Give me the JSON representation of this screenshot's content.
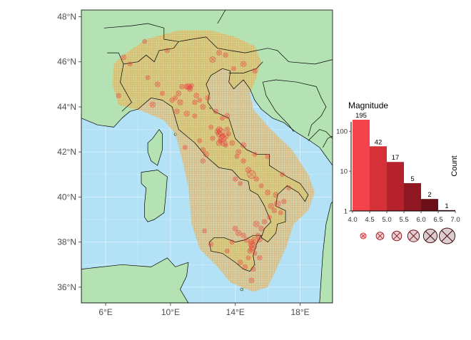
{
  "chart_data": [
    {
      "type": "map",
      "x_ticks": [
        "6°E",
        "10°E",
        "14°E",
        "18°E"
      ],
      "y_ticks": [
        "36°N",
        "38°N",
        "40°N",
        "42°N",
        "44°N",
        "46°N",
        "48°N"
      ],
      "xlim": [
        4.5,
        20.0
      ],
      "ylim": [
        35.3,
        48.3
      ],
      "colors": {
        "sea": "#b3e2f7",
        "land": "#b5e2b3",
        "hazard_zone": "#e8c268",
        "hatch": "#f08a3c",
        "event_marker": "#e8413f",
        "border": "#000000"
      },
      "events": [
        [
          11.1,
          44.9,
          4.5
        ],
        [
          11.2,
          44.85,
          4.2
        ],
        [
          11.0,
          44.9,
          4.3
        ],
        [
          11.3,
          44.95,
          4.1
        ],
        [
          11.2,
          44.8,
          4.4
        ],
        [
          10.7,
          44.9,
          4.2
        ],
        [
          10.5,
          44.6,
          4.3
        ],
        [
          10.3,
          44.4,
          4.1
        ],
        [
          10.6,
          44.2,
          4.4
        ],
        [
          11.5,
          44.2,
          4.2
        ],
        [
          12.0,
          44.0,
          4.3
        ],
        [
          11.8,
          44.3,
          4.1
        ],
        [
          13.0,
          42.8,
          4.5
        ],
        [
          13.1,
          42.9,
          4.8
        ],
        [
          13.2,
          42.7,
          4.3
        ],
        [
          13.0,
          43.0,
          4.4
        ],
        [
          13.2,
          42.6,
          4.9
        ],
        [
          13.1,
          42.5,
          4.2
        ],
        [
          13.3,
          42.4,
          4.6
        ],
        [
          12.9,
          42.9,
          4.3
        ],
        [
          13.4,
          42.3,
          4.1
        ],
        [
          13.5,
          43.0,
          4.2
        ],
        [
          13.4,
          42.7,
          4.5
        ],
        [
          13.0,
          42.4,
          4.4
        ],
        [
          12.5,
          43.1,
          4.1
        ],
        [
          13.8,
          42.4,
          4.3
        ],
        [
          13.6,
          42.8,
          4.1
        ],
        [
          12.6,
          42.6,
          4.2
        ],
        [
          14.2,
          42.0,
          4.3
        ],
        [
          14.1,
          41.8,
          4.1
        ],
        [
          14.5,
          41.6,
          4.2
        ],
        [
          14.8,
          41.2,
          4.4
        ],
        [
          15.0,
          41.0,
          5.1
        ],
        [
          15.3,
          40.8,
          4.2
        ],
        [
          15.6,
          40.5,
          4.1
        ],
        [
          16.0,
          40.2,
          4.3
        ],
        [
          16.2,
          39.6,
          4.4
        ],
        [
          16.4,
          39.4,
          4.2
        ],
        [
          16.1,
          39.1,
          4.1
        ],
        [
          16.6,
          39.7,
          4.6
        ],
        [
          15.8,
          38.9,
          4.2
        ],
        [
          15.6,
          38.6,
          4.3
        ],
        [
          15.4,
          38.3,
          4.1
        ],
        [
          15.2,
          38.1,
          4.5
        ],
        [
          15.0,
          38.0,
          4.4
        ],
        [
          15.1,
          37.8,
          4.8
        ],
        [
          15.0,
          37.7,
          4.3
        ],
        [
          14.9,
          37.6,
          4.2
        ],
        [
          15.2,
          37.5,
          4.1
        ],
        [
          15.0,
          37.9,
          4.6
        ],
        [
          14.7,
          38.1,
          4.3
        ],
        [
          14.5,
          38.3,
          4.2
        ],
        [
          13.8,
          38.0,
          4.1
        ],
        [
          14.2,
          38.4,
          4.4
        ],
        [
          15.3,
          38.8,
          4.5
        ],
        [
          15.5,
          37.3,
          4.2
        ],
        [
          14.8,
          37.3,
          4.1
        ],
        [
          14.6,
          36.9,
          4.2
        ],
        [
          15.0,
          36.3,
          4.3
        ],
        [
          12.5,
          37.9,
          4.2
        ],
        [
          12.1,
          38.5,
          4.1
        ],
        [
          14.0,
          38.6,
          4.3
        ],
        [
          15.5,
          38.1,
          4.2
        ],
        [
          16.8,
          39.3,
          4.1
        ],
        [
          17.0,
          39.8,
          4.2
        ],
        [
          16.5,
          40.1,
          4.3
        ],
        [
          16.9,
          41.0,
          4.1
        ],
        [
          14.0,
          40.8,
          4.2
        ],
        [
          14.3,
          40.6,
          4.1
        ],
        [
          12.0,
          41.6,
          4.2
        ],
        [
          12.2,
          41.9,
          4.4
        ],
        [
          11.8,
          42.5,
          4.1
        ],
        [
          13.5,
          43.6,
          4.3
        ],
        [
          12.8,
          43.8,
          4.2
        ],
        [
          13.2,
          43.5,
          4.1
        ],
        [
          9.8,
          46.5,
          4.2
        ],
        [
          7.5,
          45.9,
          4.1
        ],
        [
          6.8,
          44.5,
          4.2
        ],
        [
          7.1,
          46.2,
          4.3
        ],
        [
          8.4,
          46.9,
          4.1
        ],
        [
          12.6,
          46.1,
          4.5
        ],
        [
          13.0,
          46.4,
          4.3
        ],
        [
          13.4,
          46.3,
          4.2
        ],
        [
          13.9,
          45.7,
          4.1
        ],
        [
          14.5,
          45.9,
          4.4
        ],
        [
          15.2,
          45.6,
          4.2
        ],
        [
          9.2,
          45.0,
          4.3
        ],
        [
          8.6,
          45.3,
          4.1
        ],
        [
          10.1,
          44.3,
          4.2
        ],
        [
          10.4,
          43.8,
          4.3
        ],
        [
          11.0,
          43.7,
          4.4
        ],
        [
          11.5,
          43.6,
          4.1
        ],
        [
          12.0,
          42.1,
          4.2
        ],
        [
          14.5,
          42.3,
          4.4
        ],
        [
          15.2,
          41.9,
          4.1
        ],
        [
          16.0,
          41.8,
          4.2
        ],
        [
          17.3,
          40.4,
          4.1
        ],
        [
          15.1,
          36.8,
          4.2
        ],
        [
          13.5,
          37.6,
          4.1
        ],
        [
          14.3,
          37.1,
          4.3
        ],
        [
          8.9,
          44.1,
          4.4
        ],
        [
          9.5,
          44.6,
          4.1
        ],
        [
          11.6,
          44.5,
          4.3
        ],
        [
          12.3,
          44.4,
          4.2
        ],
        [
          10.9,
          42.2,
          4.1
        ]
      ]
    },
    {
      "type": "bar",
      "title": "Magnitude",
      "ylabel": "Count",
      "scale": "log10",
      "categories": [
        "4.0-4.5",
        "4.5-5.0",
        "5.0-5.5",
        "5.5-6.0",
        "6.0-6.5",
        "6.5-7.0"
      ],
      "bin_edges": [
        4.0,
        4.5,
        5.0,
        5.5,
        6.0,
        6.5,
        7.0
      ],
      "x_ticks": [
        "4.0",
        "4.5",
        "5.0",
        "5.5",
        "6.0",
        "6.5",
        "7.0"
      ],
      "values": [
        195,
        42,
        17,
        5,
        2,
        1
      ],
      "value_labels": [
        "195",
        "42",
        "17",
        "5",
        "2",
        "1"
      ],
      "y_ticks": [
        "1",
        "10",
        "100"
      ],
      "ylim": [
        1,
        260
      ],
      "colors": [
        "#f4434a",
        "#d63038",
        "#b5222d",
        "#8e1722",
        "#6b0f18",
        "#4b0a12"
      ],
      "size_legend": [
        "4.5",
        "5.0",
        "5.5",
        "6.0",
        "6.5",
        "7.0"
      ]
    }
  ]
}
